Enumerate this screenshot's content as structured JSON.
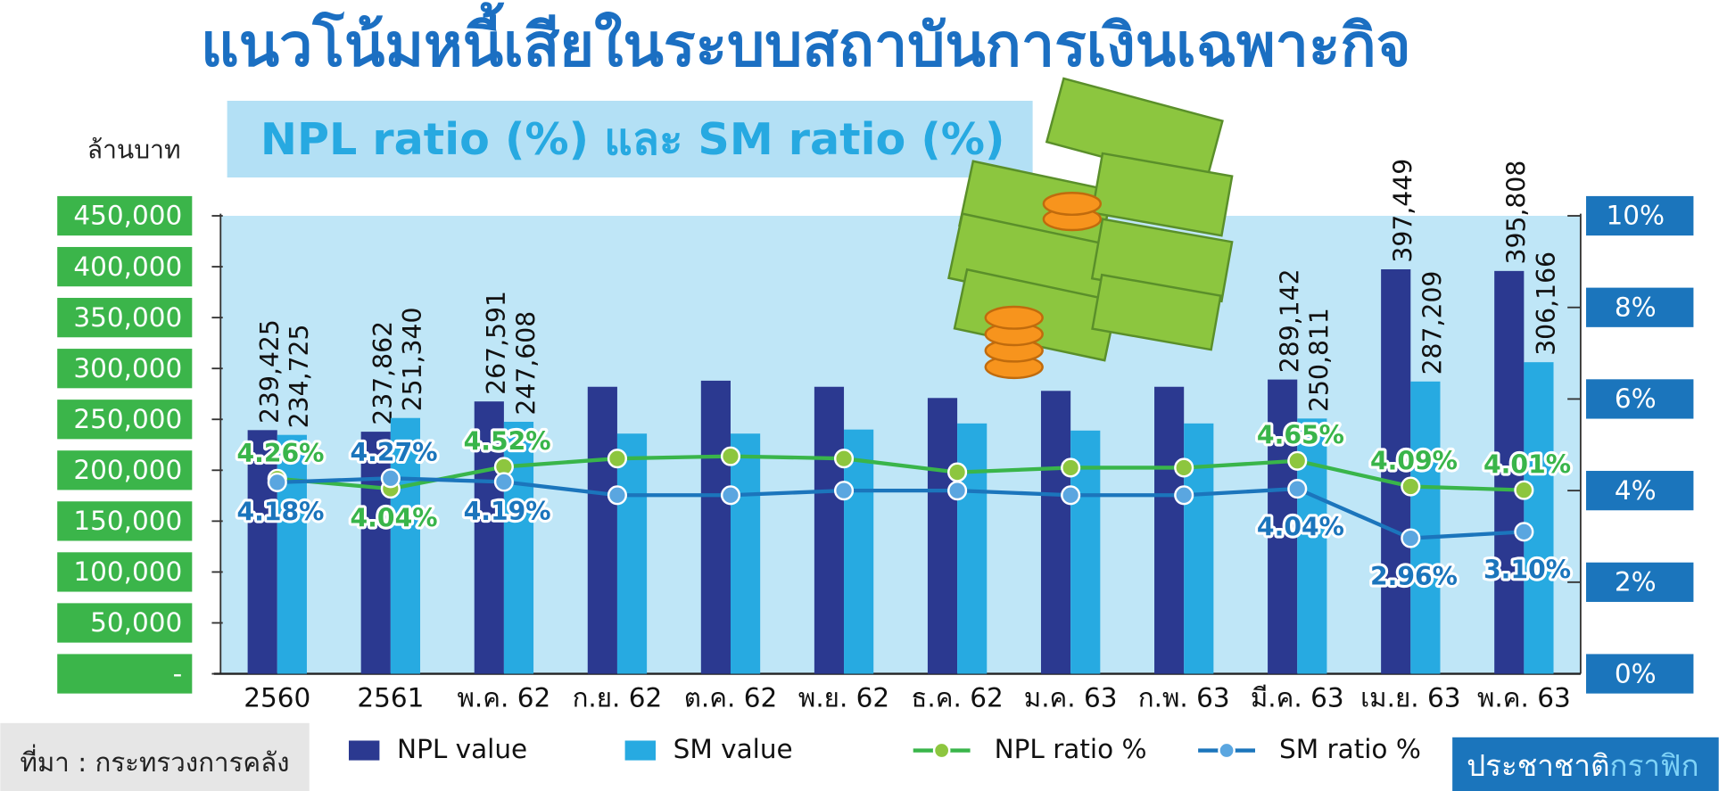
{
  "chart_data": {
    "type": "bar",
    "title": "แนวโน้มหนี้เสียในระบบสถาบันการเงินเฉพาะกิจ",
    "subtitle": "NPL ratio (%) และ SM ratio (%)",
    "y_label": "ล้านบาท",
    "source": "ที่มา : กระทรวงการคลัง",
    "credit": [
      "ประชาชาติ",
      "กราฟิก"
    ],
    "categories": [
      "2560",
      "2561",
      "พ.ค. 62",
      "ก.ย. 62",
      "ต.ค. 62",
      "พ.ย. 62",
      "ธ.ค. 62",
      "ม.ค. 63",
      "ก.พ. 63",
      "มี.ค. 63",
      "เม.ย. 63",
      "พ.ค. 63"
    ],
    "ylim": [
      0,
      450000
    ],
    "yticks": [
      {
        "value": 0,
        "label": "-"
      },
      {
        "value": 50000,
        "label": "50,000"
      },
      {
        "value": 100000,
        "label": "100,000"
      },
      {
        "value": 150000,
        "label": "150,000"
      },
      {
        "value": 200000,
        "label": "200,000"
      },
      {
        "value": 250000,
        "label": "250,000"
      },
      {
        "value": 300000,
        "label": "300,000"
      },
      {
        "value": 350000,
        "label": "350,000"
      },
      {
        "value": 400000,
        "label": "400,000"
      },
      {
        "value": 450000,
        "label": "450,000"
      }
    ],
    "y2lim": [
      0,
      10
    ],
    "y2ticks": [
      {
        "value": 0,
        "label": "0%"
      },
      {
        "value": 2,
        "label": "2%"
      },
      {
        "value": 4,
        "label": "4%"
      },
      {
        "value": 6,
        "label": "6%"
      },
      {
        "value": 8,
        "label": "8%"
      },
      {
        "value": 10,
        "label": "10%"
      }
    ],
    "series": [
      {
        "name": "NPL value",
        "type": "bar",
        "color": "#2b3990",
        "values": [
          239425,
          237862,
          267591,
          282000,
          288000,
          282000,
          271000,
          278000,
          282000,
          289142,
          397449,
          395808
        ],
        "value_labels": [
          "239,425",
          "237,862",
          "267,591",
          null,
          null,
          null,
          null,
          null,
          null,
          "289,142",
          "397,449",
          "395,808"
        ]
      },
      {
        "name": "SM value",
        "type": "bar",
        "color": "#27aae1",
        "values": [
          234725,
          251340,
          247608,
          236000,
          236000,
          240000,
          246000,
          239000,
          246000,
          250811,
          287209,
          306166
        ],
        "value_labels": [
          "234,725",
          "251,340",
          "247,608",
          null,
          null,
          null,
          null,
          null,
          null,
          "250,811",
          "287,209",
          "306,166"
        ]
      },
      {
        "name": "NPL ratio %",
        "type": "line",
        "axis": "y2",
        "color": "#39b54a",
        "values": [
          4.26,
          4.04,
          4.52,
          4.7,
          4.75,
          4.7,
          4.4,
          4.5,
          4.5,
          4.65,
          4.09,
          4.01
        ],
        "value_labels": [
          "4.26%",
          "4.04%",
          "4.52%",
          null,
          null,
          null,
          null,
          null,
          null,
          "4.65%",
          "4.09%",
          "4.01%"
        ]
      },
      {
        "name": "SM ratio %",
        "type": "line",
        "axis": "y2",
        "color": "#1b75bc",
        "values": [
          4.18,
          4.27,
          4.19,
          3.9,
          3.9,
          4.0,
          4.0,
          3.9,
          3.9,
          4.04,
          2.96,
          3.1
        ],
        "value_labels": [
          "4.18%",
          "4.27%",
          "4.19%",
          null,
          null,
          null,
          null,
          null,
          null,
          "4.04%",
          "2.96%",
          "3.10%"
        ]
      }
    ]
  }
}
